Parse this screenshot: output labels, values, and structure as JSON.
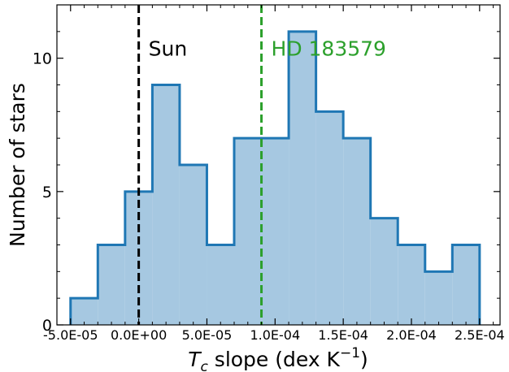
{
  "chart_data": {
    "type": "histogram",
    "xlabel_main": "T",
    "xlabel_sub": "c",
    "xlabel_rest": " slope (dex K",
    "xlabel_sup": "−1",
    "xlabel_close": ")",
    "ylabel": "Number of stars",
    "xlim": [
      -6e-05,
      0.000265
    ],
    "ylim": [
      0,
      12
    ],
    "x_ticks": [
      -5e-05,
      0.0,
      5e-05,
      0.0001,
      0.00015,
      0.0002,
      0.00025
    ],
    "x_tick_labels": [
      "-5.0E-05",
      "0.0E+00",
      "5.0E-05",
      "1.0E-04",
      "1.5E-04",
      "2.0E-04",
      "2.5E-04"
    ],
    "y_ticks": [
      0,
      5,
      10
    ],
    "y_tick_labels": [
      "0",
      "5",
      "10"
    ],
    "bin_edges": [
      -5e-05,
      -3e-05,
      -1e-05,
      1e-05,
      3e-05,
      5e-05,
      7e-05,
      9e-05,
      0.00011,
      0.00013,
      0.00015,
      0.00017,
      0.00019,
      0.00021,
      0.00023,
      0.00025
    ],
    "counts": [
      1,
      3,
      5,
      9,
      6,
      3,
      7,
      7,
      11,
      8,
      7,
      4,
      3,
      2,
      3
    ],
    "fill_color": "#a6c8e1",
    "edge_color": "#1f77b4",
    "reference_lines": [
      {
        "label": "Sun",
        "x": 0.0,
        "color": "#000000"
      },
      {
        "label": "HD 183579",
        "x": 9e-05,
        "color": "#2ca02c"
      }
    ]
  }
}
